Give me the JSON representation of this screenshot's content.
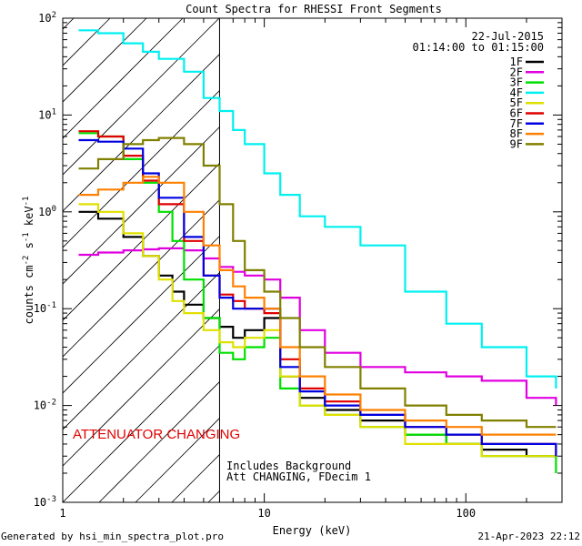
{
  "chart_data": {
    "type": "line",
    "title": "Count Spectra for RHESSI Front Segments",
    "xlabel": "Energy (keV)",
    "ylabel": "counts cm^-2 s^-1 keV^-1",
    "xscale": "log",
    "yscale": "log",
    "xlim": [
      1,
      300
    ],
    "ylim": [
      0.001,
      100
    ],
    "x_ticks": [
      {
        "v": 1,
        "label": "1"
      },
      {
        "v": 10,
        "label": "10"
      },
      {
        "v": 100,
        "label": "100"
      }
    ],
    "y_ticks": [
      {
        "v": 0.001,
        "base": "10",
        "exp": "-3"
      },
      {
        "v": 0.01,
        "base": "10",
        "exp": "-2"
      },
      {
        "v": 0.1,
        "base": "10",
        "exp": "-1"
      },
      {
        "v": 1,
        "base": "10",
        "exp": "0"
      },
      {
        "v": 10,
        "base": "10",
        "exp": "1"
      },
      {
        "v": 100,
        "base": "10",
        "exp": "2"
      }
    ],
    "date": "22-Jul-2015",
    "time_range": "01:14:00 to 01:15:00",
    "attenuator_boundary_kev": 6,
    "attenuator_text": "ATTENUATOR CHANGING",
    "annotation_lines": [
      "Includes Background",
      "Att CHANGING, FDecim 1"
    ],
    "series": [
      {
        "name": "1F",
        "color": "#000000",
        "points": [
          [
            1.2,
            1.0
          ],
          [
            1.5,
            0.85
          ],
          [
            2.0,
            0.55
          ],
          [
            2.5,
            0.35
          ],
          [
            3.0,
            0.22
          ],
          [
            3.5,
            0.15
          ],
          [
            4.0,
            0.11
          ],
          [
            5.0,
            0.08
          ],
          [
            6.0,
            0.065
          ],
          [
            7.0,
            0.05
          ],
          [
            8.0,
            0.06
          ],
          [
            10,
            0.08
          ],
          [
            12,
            0.02
          ],
          [
            15,
            0.012
          ],
          [
            20,
            0.009
          ],
          [
            30,
            0.007
          ],
          [
            50,
            0.005
          ],
          [
            80,
            0.004
          ],
          [
            120,
            0.0035
          ],
          [
            200,
            0.003
          ],
          [
            280,
            0.003
          ]
        ]
      },
      {
        "name": "2F",
        "color": "#e000e0",
        "points": [
          [
            1.2,
            0.36
          ],
          [
            1.5,
            0.38
          ],
          [
            2.0,
            0.4
          ],
          [
            2.5,
            0.41
          ],
          [
            3.0,
            0.42
          ],
          [
            4.0,
            0.4
          ],
          [
            5.0,
            0.33
          ],
          [
            6.0,
            0.27
          ],
          [
            7.0,
            0.24
          ],
          [
            8.0,
            0.22
          ],
          [
            10,
            0.2
          ],
          [
            12,
            0.13
          ],
          [
            15,
            0.06
          ],
          [
            20,
            0.035
          ],
          [
            30,
            0.025
          ],
          [
            50,
            0.022
          ],
          [
            80,
            0.02
          ],
          [
            120,
            0.018
          ],
          [
            200,
            0.012
          ],
          [
            280,
            0.01
          ]
        ]
      },
      {
        "name": "3F",
        "color": "#00e000",
        "points": [
          [
            1.2,
            6.5
          ],
          [
            1.5,
            6.0
          ],
          [
            2.0,
            3.5
          ],
          [
            2.5,
            2.0
          ],
          [
            3.0,
            1.0
          ],
          [
            3.5,
            0.5
          ],
          [
            4.0,
            0.2
          ],
          [
            5.0,
            0.08
          ],
          [
            6.0,
            0.035
          ],
          [
            7.0,
            0.03
          ],
          [
            8.0,
            0.04
          ],
          [
            10,
            0.05
          ],
          [
            12,
            0.015
          ],
          [
            15,
            0.01
          ],
          [
            20,
            0.008
          ],
          [
            30,
            0.006
          ],
          [
            50,
            0.005
          ],
          [
            80,
            0.004
          ],
          [
            120,
            0.003
          ],
          [
            200,
            0.003
          ],
          [
            280,
            0.002
          ]
        ]
      },
      {
        "name": "4F",
        "color": "#00f0f0",
        "points": [
          [
            1.2,
            75
          ],
          [
            1.5,
            70
          ],
          [
            2.0,
            55
          ],
          [
            2.5,
            45
          ],
          [
            3.0,
            38
          ],
          [
            4.0,
            28
          ],
          [
            5.0,
            15
          ],
          [
            6.0,
            11
          ],
          [
            7.0,
            7
          ],
          [
            8.0,
            5
          ],
          [
            10,
            2.5
          ],
          [
            12,
            1.5
          ],
          [
            15,
            0.9
          ],
          [
            20,
            0.7
          ],
          [
            30,
            0.45
          ],
          [
            50,
            0.15
          ],
          [
            80,
            0.07
          ],
          [
            120,
            0.04
          ],
          [
            200,
            0.02
          ],
          [
            280,
            0.015
          ]
        ]
      },
      {
        "name": "5F",
        "color": "#e0e000",
        "points": [
          [
            1.2,
            1.2
          ],
          [
            1.5,
            1.0
          ],
          [
            2.0,
            0.6
          ],
          [
            2.5,
            0.35
          ],
          [
            3.0,
            0.2
          ],
          [
            3.5,
            0.12
          ],
          [
            4.0,
            0.09
          ],
          [
            5.0,
            0.06
          ],
          [
            6.0,
            0.045
          ],
          [
            7.0,
            0.04
          ],
          [
            8.0,
            0.05
          ],
          [
            10,
            0.06
          ],
          [
            12,
            0.02
          ],
          [
            15,
            0.01
          ],
          [
            20,
            0.008
          ],
          [
            30,
            0.006
          ],
          [
            50,
            0.004
          ],
          [
            80,
            0.004
          ],
          [
            120,
            0.003
          ],
          [
            200,
            0.003
          ],
          [
            280,
            0.003
          ]
        ]
      },
      {
        "name": "6F",
        "color": "#e00000",
        "points": [
          [
            1.2,
            6.8
          ],
          [
            1.5,
            6.0
          ],
          [
            2.0,
            3.8
          ],
          [
            2.5,
            2.1
          ],
          [
            3.0,
            1.2
          ],
          [
            4.0,
            0.5
          ],
          [
            5.0,
            0.22
          ],
          [
            6.0,
            0.14
          ],
          [
            7.0,
            0.12
          ],
          [
            8.0,
            0.1
          ],
          [
            10,
            0.09
          ],
          [
            12,
            0.03
          ],
          [
            15,
            0.015
          ],
          [
            20,
            0.011
          ],
          [
            30,
            0.008
          ],
          [
            50,
            0.006
          ],
          [
            80,
            0.005
          ],
          [
            120,
            0.004
          ],
          [
            200,
            0.004
          ],
          [
            280,
            0.003
          ]
        ]
      },
      {
        "name": "7F",
        "color": "#0000e0",
        "points": [
          [
            1.2,
            5.5
          ],
          [
            1.5,
            5.3
          ],
          [
            2.0,
            4.5
          ],
          [
            2.5,
            2.5
          ],
          [
            3.0,
            1.4
          ],
          [
            4.0,
            0.55
          ],
          [
            5.0,
            0.22
          ],
          [
            6.0,
            0.13
          ],
          [
            7.0,
            0.1
          ],
          [
            8.0,
            0.1
          ],
          [
            10,
            0.1
          ],
          [
            12,
            0.025
          ],
          [
            15,
            0.014
          ],
          [
            20,
            0.01
          ],
          [
            30,
            0.008
          ],
          [
            50,
            0.006
          ],
          [
            80,
            0.005
          ],
          [
            120,
            0.004
          ],
          [
            200,
            0.004
          ],
          [
            280,
            0.003
          ]
        ]
      },
      {
        "name": "8F",
        "color": "#ff8000",
        "points": [
          [
            1.2,
            1.5
          ],
          [
            1.5,
            1.7
          ],
          [
            2.0,
            2.0
          ],
          [
            2.5,
            2.3
          ],
          [
            3.0,
            2.0
          ],
          [
            4.0,
            1.0
          ],
          [
            5.0,
            0.45
          ],
          [
            6.0,
            0.25
          ],
          [
            7.0,
            0.17
          ],
          [
            8.0,
            0.13
          ],
          [
            10,
            0.1
          ],
          [
            12,
            0.04
          ],
          [
            15,
            0.02
          ],
          [
            20,
            0.013
          ],
          [
            30,
            0.009
          ],
          [
            50,
            0.007
          ],
          [
            80,
            0.006
          ],
          [
            120,
            0.005
          ],
          [
            200,
            0.005
          ],
          [
            280,
            0.005
          ]
        ]
      },
      {
        "name": "9F",
        "color": "#808000",
        "points": [
          [
            1.2,
            2.8
          ],
          [
            1.5,
            3.5
          ],
          [
            2.0,
            5.0
          ],
          [
            2.5,
            5.5
          ],
          [
            3.0,
            5.8
          ],
          [
            4.0,
            5.0
          ],
          [
            5.0,
            3.0
          ],
          [
            6.0,
            1.2
          ],
          [
            7.0,
            0.5
          ],
          [
            8.0,
            0.25
          ],
          [
            10,
            0.15
          ],
          [
            12,
            0.08
          ],
          [
            15,
            0.04
          ],
          [
            20,
            0.025
          ],
          [
            30,
            0.015
          ],
          [
            50,
            0.01
          ],
          [
            80,
            0.008
          ],
          [
            120,
            0.007
          ],
          [
            200,
            0.006
          ],
          [
            280,
            0.006
          ]
        ]
      }
    ]
  },
  "footer": {
    "left": "Generated by hsi_min_spectra_plot.pro",
    "right": "21-Apr-2023 22:12"
  }
}
